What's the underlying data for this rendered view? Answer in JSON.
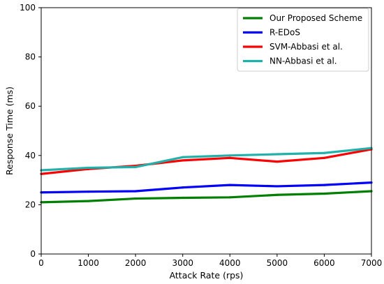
{
  "chart_data": {
    "type": "line",
    "xlabel": "Attack Rate (rps)",
    "ylabel": "Response Time (ms)",
    "xlim": [
      0,
      7000
    ],
    "ylim": [
      0,
      100
    ],
    "xticks": [
      0,
      1000,
      2000,
      3000,
      4000,
      5000,
      6000,
      7000
    ],
    "yticks": [
      0,
      20,
      40,
      60,
      80,
      100
    ],
    "grid": false,
    "legend_position": "top-right",
    "x": [
      0,
      1000,
      2000,
      3000,
      4000,
      5000,
      6000,
      7000
    ],
    "series": [
      {
        "name": "Our Proposed Scheme",
        "color": "#008000",
        "values": [
          21,
          21.5,
          22.5,
          22.8,
          23,
          24,
          24.5,
          25.5
        ]
      },
      {
        "name": "R-EDoS",
        "color": "#0000ff",
        "values": [
          25,
          25.3,
          25.5,
          27,
          28,
          27.5,
          28,
          29
        ]
      },
      {
        "name": "SVM-Abbasi et al.",
        "color": "#ff0000",
        "values": [
          32.5,
          34.5,
          35.8,
          38,
          39,
          37.5,
          39,
          42.5
        ]
      },
      {
        "name": "NN-Abbasi et al.",
        "color": "#20b2aa",
        "values": [
          34,
          35,
          35.3,
          39.3,
          40,
          40.5,
          41,
          43
        ]
      }
    ]
  }
}
